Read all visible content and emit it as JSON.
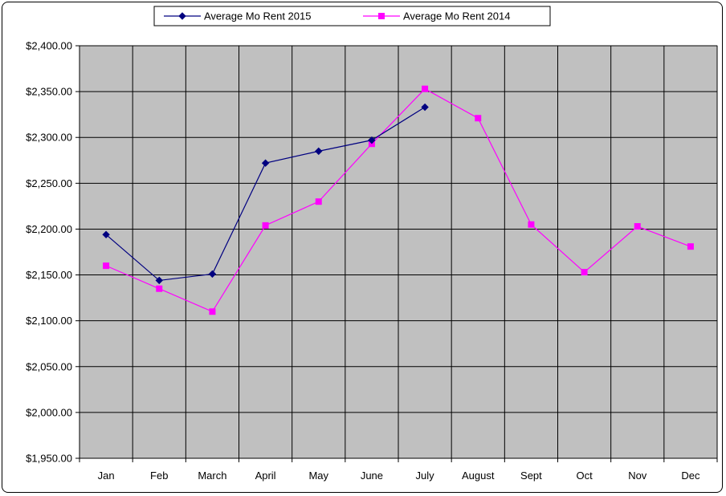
{
  "chart_data": {
    "type": "line",
    "categories": [
      "Jan",
      "Feb",
      "March",
      "April",
      "May",
      "June",
      "July",
      "August",
      "Sept",
      "Oct",
      "Nov",
      "Dec"
    ],
    "series": [
      {
        "name": "Average Mo Rent 2015",
        "color": "#000080",
        "marker": "diamond",
        "values": [
          2194,
          2144,
          2151,
          2272,
          2285,
          2297,
          2333,
          null,
          null,
          null,
          null,
          null
        ]
      },
      {
        "name": "Average Mo Rent 2014",
        "color": "#ff00ff",
        "marker": "square",
        "values": [
          2160,
          2135,
          2110,
          2204,
          2230,
          2293,
          2353,
          2321,
          2205,
          2153,
          2203,
          2181
        ]
      }
    ],
    "ylim": [
      1950,
      2400
    ],
    "yticks": [
      "$1,950.00",
      "$2,000.00",
      "$2,050.00",
      "$2,100.00",
      "$2,150.00",
      "$2,200.00",
      "$2,250.00",
      "$2,300.00",
      "$2,350.00",
      "$2,400.00"
    ],
    "ytick_values": [
      1950,
      2000,
      2050,
      2100,
      2150,
      2200,
      2250,
      2300,
      2350,
      2400
    ],
    "grid": true,
    "plot_background": "#c0c0c0",
    "legend_position": "top"
  }
}
